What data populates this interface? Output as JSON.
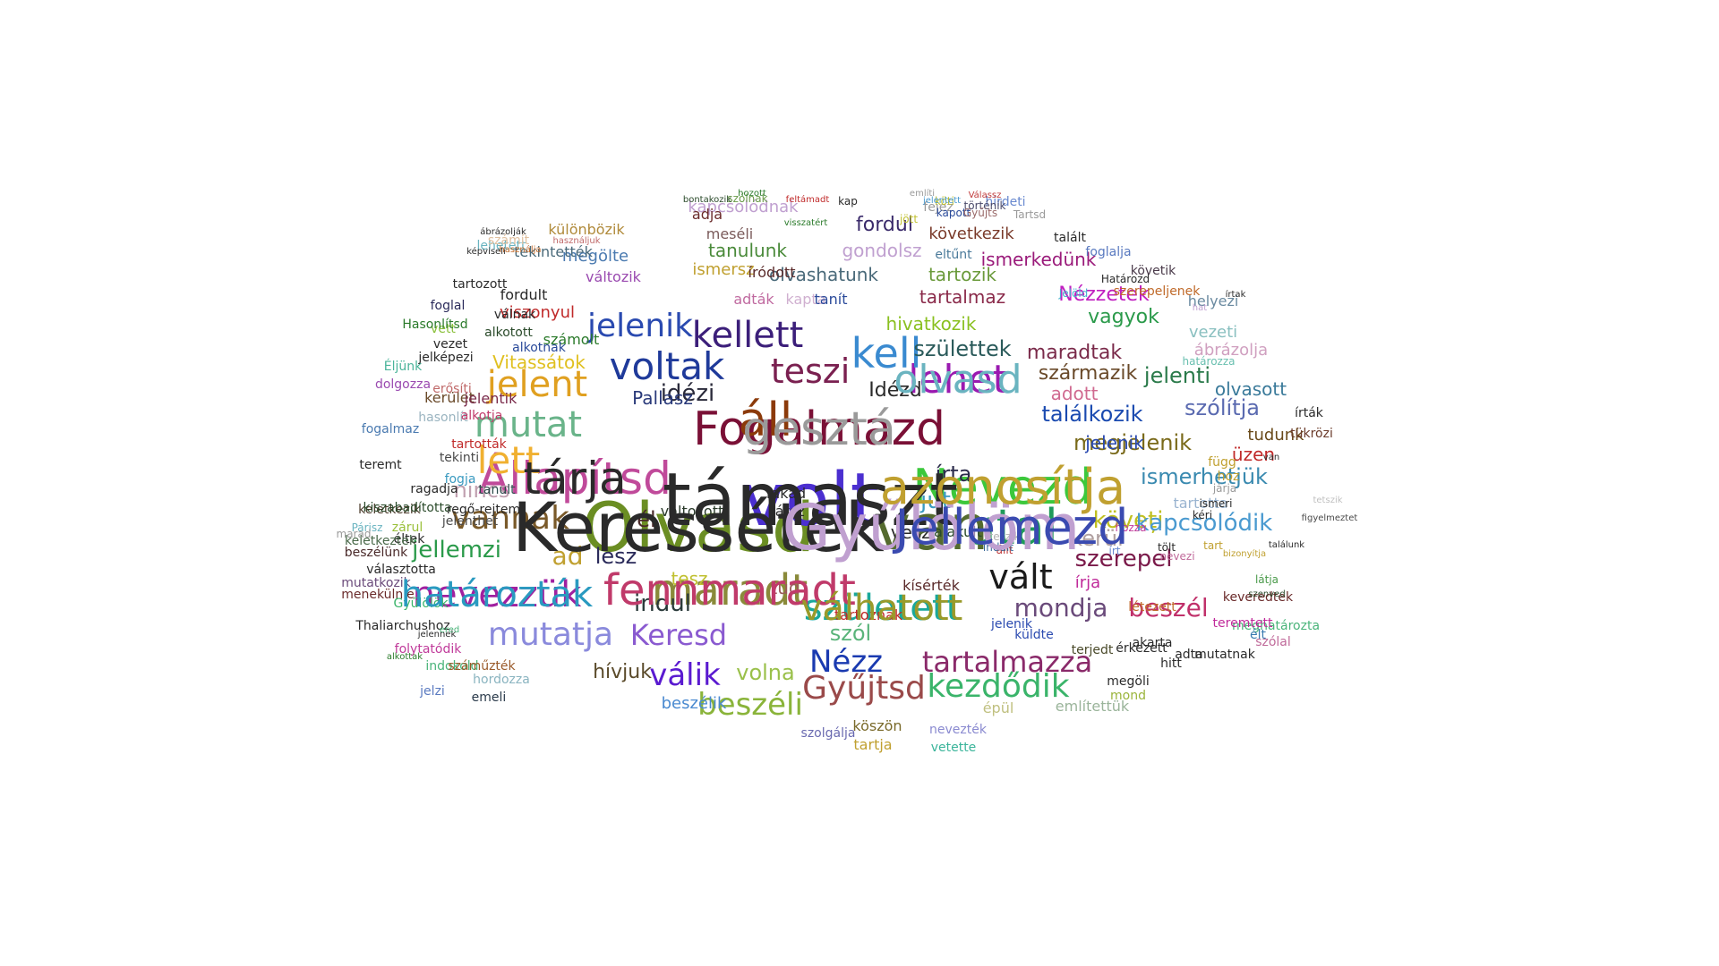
{
  "words": [
    {
      "text": "Olvasd",
      "color": "#6b8e23"
    },
    {
      "text": "volt",
      "color": "#4b2fd0"
    },
    {
      "text": "Fogalmazd",
      "color": "#7a1036"
    },
    {
      "text": "Állapítsd",
      "color": "#c04a9a"
    },
    {
      "text": "van",
      "color": "#556b2f"
    },
    {
      "text": "utal",
      "color": "#1f9a5a"
    },
    {
      "text": "Nevezd",
      "color": "#3cc83c"
    },
    {
      "text": "maradt",
      "color": "#8a8a3a"
    },
    {
      "text": "nevezzük",
      "color": "#a020a0"
    },
    {
      "text": "született",
      "color": "#1aa89a"
    },
    {
      "text": "lehet",
      "color": "#9a1ab0"
    },
    {
      "text": "kell",
      "color": "#3a8ad0"
    },
    {
      "text": "voltak",
      "color": "#1f3a9a"
    },
    {
      "text": "kellett",
      "color": "#3c1f7a"
    },
    {
      "text": "jelent",
      "color": "#e0a020"
    },
    {
      "text": "áll",
      "color": "#8b3a0a"
    },
    {
      "text": "mutat",
      "color": "#6ab48a"
    },
    {
      "text": "lett",
      "color": "#f0b030"
    },
    {
      "text": "teszi",
      "color": "#7a2050"
    },
    {
      "text": "jelenik",
      "color": "#2a4ab0"
    },
    {
      "text": "vannak",
      "color": "#7a5a2a"
    },
    {
      "text": "mutatja",
      "color": "#8a8adc"
    },
    {
      "text": "vált",
      "color": "#1a1a1a"
    },
    {
      "text": "kezdődik",
      "color": "#3ab46a"
    },
    {
      "text": "Gyűjtsd",
      "color": "#9a4a4a"
    },
    {
      "text": "tartalmazza",
      "color": "#8a2a6a"
    },
    {
      "text": "beszéli",
      "color": "#8ab43a"
    },
    {
      "text": "válik",
      "color": "#5a1ad0"
    },
    {
      "text": "Nézz",
      "color": "#1a3ab0"
    },
    {
      "text": "Keresd",
      "color": "#8a5ad0"
    },
    {
      "text": "mondja",
      "color": "#6a4a7a"
    },
    {
      "text": "beszél",
      "color": "#c0306a"
    },
    {
      "text": "szerepel",
      "color": "#7a1a4a"
    },
    {
      "text": "köveți",
      "color": "#c0c020"
    },
    {
      "text": "kapcsolódik",
      "color": "#4a9ad0"
    },
    {
      "text": "ismerhetjük",
      "color": "#3a8ab0"
    },
    {
      "text": "megjelenik",
      "color": "#7a6a1a"
    },
    {
      "text": "találkozik",
      "color": "#1a4ab0"
    },
    {
      "text": "szólítja",
      "color": "#5a6ab0"
    },
    {
      "text": "jelenti",
      "color": "#2a7a4a"
    },
    {
      "text": "maradtak",
      "color": "#7a2a4a"
    },
    {
      "text": "születtek",
      "color": "#2a5a5a"
    },
    {
      "text": "származik",
      "color": "#6a4a2a"
    },
    {
      "text": "jellemzi",
      "color": "#2a9a4a"
    },
    {
      "text": "nincs",
      "color": "#c0a0b0"
    },
    {
      "text": "indul",
      "color": "#2a3a3a"
    },
    {
      "text": "szól",
      "color": "#5ab47a"
    },
    {
      "text": "volna",
      "color": "#9ac04a"
    },
    {
      "text": "hívjuk",
      "color": "#5a4a2a"
    },
    {
      "text": "idézi",
      "color": "#2a2a3a"
    },
    {
      "text": "Idézd",
      "color": "#2a2a2a"
    },
    {
      "text": "jut",
      "color": "#3a9ac0"
    },
    {
      "text": "írta",
      "color": "#2a2a4a"
    },
    {
      "text": "vagyok",
      "color": "#2a9a4a"
    },
    {
      "text": "hivatkozik",
      "color": "#8ac020"
    },
    {
      "text": "tartalmaz",
      "color": "#8a2a4a"
    },
    {
      "text": "tartozik",
      "color": "#6a9a3a"
    },
    {
      "text": "olvashatunk",
      "color": "#4a6a7a"
    },
    {
      "text": "ismerkedünk",
      "color": "#9a1a7a"
    },
    {
      "text": "következik",
      "color": "#7a3a2a"
    },
    {
      "text": "fordul",
      "color": "#3a2a6a"
    },
    {
      "text": "gondolsz",
      "color": "#c0a0d0"
    },
    {
      "text": "tanulunk",
      "color": "#4a8a3a"
    },
    {
      "text": "megölte",
      "color": "#4a7ab0"
    },
    {
      "text": "különbözik",
      "color": "#b08a3a"
    },
    {
      "text": "kapcsolódnak",
      "color": "#c0a0d0"
    },
    {
      "text": "adja",
      "color": "#6a2a2a"
    },
    {
      "text": "meséli",
      "color": "#7a5a5a"
    },
    {
      "text": "Nézzetek",
      "color": "#c020c0"
    },
    {
      "text": "adott",
      "color": "#d06a90"
    },
    {
      "text": "olvasott",
      "color": "#3a7a9a"
    },
    {
      "text": "tudunk",
      "color": "#6a4a1a"
    },
    {
      "text": "üzen",
      "color": "#c02a2a"
    },
    {
      "text": "vezeti",
      "color": "#8ac0c0"
    },
    {
      "text": "ábrázolja",
      "color": "#d0a0c0"
    },
    {
      "text": "helyezi",
      "color": "#6a8aa0"
    },
    {
      "text": "követik",
      "color": "#4a3a4a"
    },
    {
      "text": "kerül",
      "color": "#b0a0a0"
    },
    {
      "text": "tartotta",
      "color": "#9ab4d0"
    },
    {
      "text": "Vitassátok",
      "color": "#e0c020"
    },
    {
      "text": "jelenik",
      "color": "#2a4ab0"
    },
    {
      "text": "Pallasz",
      "color": "#2a3a7a"
    },
    {
      "text": "ad",
      "color": "#c0a030"
    },
    {
      "text": "lesz",
      "color": "#2a2a5a"
    },
    {
      "text": "él",
      "color": "#4a2a2a"
    },
    {
      "text": "változott",
      "color": "#2a3a2a"
    },
    {
      "text": "tesz",
      "color": "#c0c030"
    },
    {
      "text": "tud",
      "color": "#9a5a5a"
    },
    {
      "text": "írja",
      "color": "#c02a9a"
    },
    {
      "text": "veszi",
      "color": "#2a2a2a"
    },
    {
      "text": "alakult",
      "color": "#2a4a2a"
    },
    {
      "text": "fakad",
      "color": "#2a2a2a"
    },
    {
      "text": "látsz",
      "color": "#2a2a2a"
    },
    {
      "text": "kísérték",
      "color": "#5a2a2a"
    },
    {
      "text": "tartoznak",
      "color": "#c02a2a"
    },
    {
      "text": "épül",
      "color": "#c0c080"
    },
    {
      "text": "említettük",
      "color": "#9ab49a"
    },
    {
      "text": "megöli",
      "color": "#2a2a2a"
    },
    {
      "text": "mond",
      "color": "#9ab43a"
    },
    {
      "text": "köszön",
      "color": "#7a6a2a"
    },
    {
      "text": "nevezték",
      "color": "#8a8ad0"
    },
    {
      "text": "vetette",
      "color": "#3ab49a"
    },
    {
      "text": "tartja",
      "color": "#c0a030"
    },
    {
      "text": "szolgálja",
      "color": "#6a6ab0"
    },
    {
      "text": "beszélik",
      "color": "#4a8ad0"
    },
    {
      "text": "viszonyul",
      "color": "#c02a2a"
    },
    {
      "text": "számolt",
      "color": "#2a7a2a"
    },
    {
      "text": "fordult",
      "color": "#2a2a2a"
    },
    {
      "text": "tekintették",
      "color": "#4a6a7a"
    },
    {
      "text": "változik",
      "color": "#9a4ab0"
    },
    {
      "text": "ismersz",
      "color": "#c0a030"
    },
    {
      "text": "íródott",
      "color": "#5a2a2a"
    },
    {
      "text": "adták",
      "color": "#c06aa0"
    },
    {
      "text": "kapta",
      "color": "#d0b0d0"
    },
    {
      "text": "tanít",
      "color": "#2a4a9a"
    },
    {
      "text": "eltűnt",
      "color": "#4a7a9a"
    },
    {
      "text": "foglalja",
      "color": "#5a7ac0"
    },
    {
      "text": "vett",
      "color": "#8ac03a"
    },
    {
      "text": "kerület",
      "color": "#6a4a2a"
    },
    {
      "text": "jelentik",
      "color": "#7a2a4a"
    },
    {
      "text": "hasonlít",
      "color": "#9ab4c0"
    },
    {
      "text": "alkotja",
      "color": "#c03a6a"
    },
    {
      "text": "tartották",
      "color": "#c02a2a"
    },
    {
      "text": "tekinti",
      "color": "#4a4a4a"
    },
    {
      "text": "fogja",
      "color": "#3a9ac0"
    },
    {
      "text": "tanult",
      "color": "#2a4a4a"
    },
    {
      "text": "teremt",
      "color": "#2a2a2a"
    },
    {
      "text": "ragadja",
      "color": "#2a2a2a"
    },
    {
      "text": "fogalmaz",
      "color": "#4a7ab0"
    },
    {
      "text": "Éljünk",
      "color": "#4ab49a"
    },
    {
      "text": "dolgozza",
      "color": "#9a4ab0"
    },
    {
      "text": "keletkezik",
      "color": "#4a3a2a"
    },
    {
      "text": "kiszabadította",
      "color": "#2a4a2a"
    },
    {
      "text": "regő-rejtem",
      "color": "#2a2a2a"
    },
    {
      "text": "jelenthet",
      "color": "#4a4a4a"
    },
    {
      "text": "zárul",
      "color": "#9ac03a"
    },
    {
      "text": "éltek",
      "color": "#2a2a2a"
    },
    {
      "text": "keletkeztek",
      "color": "#4a6a4a"
    },
    {
      "text": "beszélünk",
      "color": "#4a2a2a"
    },
    {
      "text": "választotta",
      "color": "#2a2a2a"
    },
    {
      "text": "mutatkozik",
      "color": "#6a4a7a"
    },
    {
      "text": "menekülnie",
      "color": "#6a2a2a"
    },
    {
      "text": "Gyűlölök",
      "color": "#3ab46a"
    },
    {
      "text": "Thaliarchushoz",
      "color": "#2a2a2a"
    },
    {
      "text": "folytatódik",
      "color": "#c03a9a"
    },
    {
      "text": "indokold",
      "color": "#4ab47a"
    },
    {
      "text": "száműzték",
      "color": "#9a5a2a"
    },
    {
      "text": "jelzi",
      "color": "#5a7ac0"
    },
    {
      "text": "emeli",
      "color": "#2a3a4a"
    },
    {
      "text": "hordozza",
      "color": "#8ab4c0"
    },
    {
      "text": "tükrözi",
      "color": "#6a3a2a"
    },
    {
      "text": "írták",
      "color": "#2a2a2a"
    },
    {
      "text": "függ",
      "color": "#c0a030"
    },
    {
      "text": "hoz",
      "color": "#c0a030"
    },
    {
      "text": "keveredtek",
      "color": "#6a2a2a"
    },
    {
      "text": "meghatározta",
      "color": "#4ab47a"
    },
    {
      "text": "szólal",
      "color": "#c06a9a"
    },
    {
      "text": "adta",
      "color": "#2a2a2a"
    },
    {
      "text": "mutatnak",
      "color": "#2a2a2a"
    },
    {
      "text": "élt",
      "color": "#3a7ab0"
    },
    {
      "text": "teremtett",
      "color": "#c02a9a"
    },
    {
      "text": "érkezett",
      "color": "#2a2a2a"
    },
    {
      "text": "terjedt",
      "color": "#4a4a2a"
    },
    {
      "text": "küldte",
      "color": "#2a4ab0"
    },
    {
      "text": "jelenik",
      "color": "#2a4ab0"
    },
    {
      "text": "hitt",
      "color": "#2a2a2a"
    },
    {
      "text": "akarta",
      "color": "#2a2a2a"
    },
    {
      "text": "létezett",
      "color": "#c06a2a"
    },
    {
      "text": "válnak",
      "color": "#2a2a2a"
    },
    {
      "text": "alkotott",
      "color": "#2a4a2a"
    },
    {
      "text": "alkotnak",
      "color": "#2a4a9a"
    },
    {
      "text": "jelképezi",
      "color": "#2a2a2a"
    },
    {
      "text": "tartozott",
      "color": "#2a2a2a"
    },
    {
      "text": "erősíti",
      "color": "#c06a6a"
    },
    {
      "text": "vezet",
      "color": "#2a2a2a"
    },
    {
      "text": "Hasonlítsd",
      "color": "#2a7a2a"
    },
    {
      "text": "foglal",
      "color": "#2a2a5a"
    },
    {
      "text": "lehetett",
      "color": "#6ab4c0"
    },
    {
      "text": "számít",
      "color": "#e0c0a0"
    },
    {
      "text": "szólnak",
      "color": "#6a9a4a"
    },
    {
      "text": "kap",
      "color": "#2a2a2a"
    },
    {
      "text": "fejez",
      "color": "#9a9a9a"
    },
    {
      "text": "jött",
      "color": "#c0c030"
    },
    {
      "text": "kapott",
      "color": "#2a4a9a"
    },
    {
      "text": "hirdeti",
      "color": "#6a8ad0"
    },
    {
      "text": "talált",
      "color": "#2a2a2a"
    },
    {
      "text": "határozza",
      "color": "#6ac0b0"
    },
    {
      "text": "szerepeljenek",
      "color": "#c06a2a"
    },
    {
      "text": "Határozd",
      "color": "#2a2a2a"
    },
    {
      "text": "Jelöld",
      "color": "#4ab4d0"
    },
    {
      "text": "hozza",
      "color": "#c03a9a"
    },
    {
      "text": "teszik",
      "color": "#b0b0b0"
    },
    {
      "text": "tölt",
      "color": "#2a2a2a"
    },
    {
      "text": "nevezi",
      "color": "#c06a9a"
    },
    {
      "text": "tart",
      "color": "#c0a030"
    },
    {
      "text": "látja",
      "color": "#4a9a4a"
    },
    {
      "text": "járja",
      "color": "#9a9a9a"
    },
    {
      "text": "ismeri",
      "color": "#2a2a2a"
    },
    {
      "text": "kéri",
      "color": "#2a2a2a"
    },
    {
      "text": "Párisz",
      "color": "#6ab4c0"
    },
    {
      "text": "marad",
      "color": "#9a9a9a"
    },
    {
      "text": "állt",
      "color": "#c03a3a"
    },
    {
      "text": "írt",
      "color": "#6a8ad0"
    },
    {
      "text": "indult",
      "color": "#3a6a9a"
    },
    {
      "text": "köti",
      "color": "#c0c030"
    },
    {
      "text": "történik",
      "color": "#4a4a6a"
    },
    {
      "text": "Gyűjts",
      "color": "#9a6a6a"
    },
    {
      "text": "Tartsd",
      "color": "#9a9a9a"
    },
    {
      "text": "hat",
      "color": "#c0a0d0"
    },
    {
      "text": "írtak",
      "color": "#2a2a2a"
    },
    {
      "text": "van",
      "color": "#2a2a2a"
    },
    {
      "text": "tetszik",
      "color": "#c0c0c0"
    },
    {
      "text": "találunk",
      "color": "#2a2a2a"
    },
    {
      "text": "figyelmeztet",
      "color": "#4a4a4a"
    },
    {
      "text": "bizonyítja",
      "color": "#c0a030"
    },
    {
      "text": "szenved",
      "color": "#2a4a2a"
    },
    {
      "text": "jelennek",
      "color": "#2a2a2a"
    },
    {
      "text": "alkottak",
      "color": "#2a7a2a"
    },
    {
      "text": "ered",
      "color": "#4ab47a"
    },
    {
      "text": "ábrázolják",
      "color": "#2a2a2a"
    },
    {
      "text": "használja",
      "color": "#c06a2a"
    },
    {
      "text": "képviseli",
      "color": "#2a2a2a"
    },
    {
      "text": "használjuk",
      "color": "#c06a6a"
    },
    {
      "text": "bontakozik",
      "color": "#2a4a2a"
    },
    {
      "text": "feltámadt",
      "color": "#c02a2a"
    },
    {
      "text": "említi",
      "color": "#9a9a9a"
    },
    {
      "text": "jelentett",
      "color": "#4a9ad0"
    },
    {
      "text": "Válassz",
      "color": "#c03a3a"
    },
    {
      "text": "hozott",
      "color": "#2a7a2a"
    },
    {
      "text": "visszatért",
      "color": "#2a7a2a"
    },
    {
      "text": "Keressétek",
      "color": "#2a2a2a"
    },
    {
      "text": "támaszt",
      "color": "#2a2a2a"
    },
    {
      "text": "gesztá",
      "color": "#9a9a9a"
    },
    {
      "text": "tárja",
      "color": "#2a2a2a"
    },
    {
      "text": "Gyűlölöm",
      "color": "#c0a0d0"
    },
    {
      "text": "Jellemezd",
      "color": "#3a4ab0"
    },
    {
      "text": "azonosítja",
      "color": "#c0a030"
    },
    {
      "text": "fennmaradt",
      "color": "#c03a6a"
    },
    {
      "text": "határozták",
      "color": "#2a9ac0"
    },
    {
      "text": "válhatott",
      "color": "#9a9a2a"
    },
    {
      "text": "olvasd",
      "color": "#6ab4c0"
    }
  ]
}
